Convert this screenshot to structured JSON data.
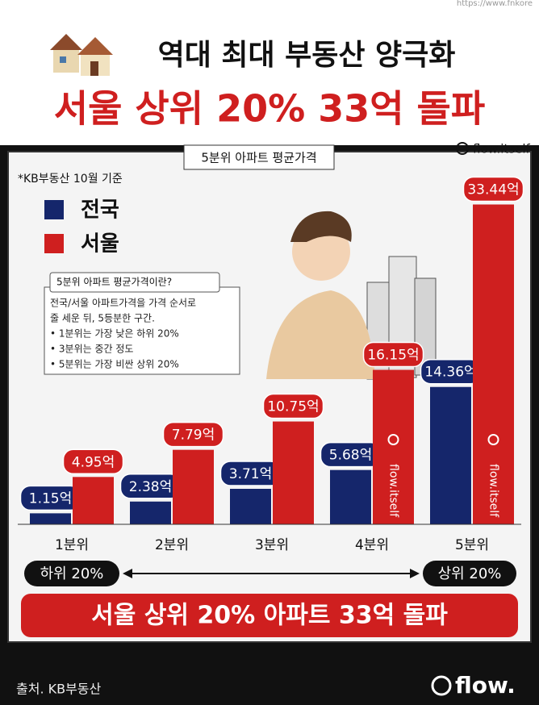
{
  "url": "https://www.fnkore",
  "header": {
    "title": "역대 최대 부동산 양극화",
    "subtitle": "서울 상위 20% 33억 돌파"
  },
  "chart_data": {
    "type": "bar",
    "title": "5분위 아파트 평균가격",
    "note": "*KB부동산 10월 기준",
    "handle": "flow.itself",
    "categories": [
      "1분위",
      "2분위",
      "3분위",
      "4분위",
      "5분위"
    ],
    "series": [
      {
        "name": "전국",
        "color": "#15266b",
        "values": [
          1.15,
          2.38,
          3.71,
          5.68,
          14.36
        ],
        "value_labels": [
          "1.15억",
          "2.38억",
          "3.71억",
          "5.68억",
          "14.36억"
        ]
      },
      {
        "name": "서울",
        "color": "#cf1f1f",
        "values": [
          4.95,
          7.79,
          10.75,
          16.15,
          33.44
        ],
        "value_labels": [
          "4.95억",
          "7.79억",
          "10.75억",
          "16.15억",
          "33.44억"
        ]
      }
    ],
    "ylim": [
      0,
      35
    ],
    "legend": "top-left",
    "info": {
      "title": "5분위 아파트 평균가격이란?",
      "lines": [
        "전국/서울 아파트가격을 가격 순서로",
        "줄 세운 뒤, 5등분한 구간.",
        "• 1분위는 가장 낮은 하위 20%",
        "• 3분위는 중간 정도",
        "• 5분위는 가장 비싼 상위 20%"
      ]
    },
    "range": {
      "low": "하위 20%",
      "high": "상위 20%"
    },
    "banner": "서울 상위 20% 아파트 33억 돌파"
  },
  "footer": {
    "source": "출처. KB부동산",
    "brand": "flow."
  }
}
